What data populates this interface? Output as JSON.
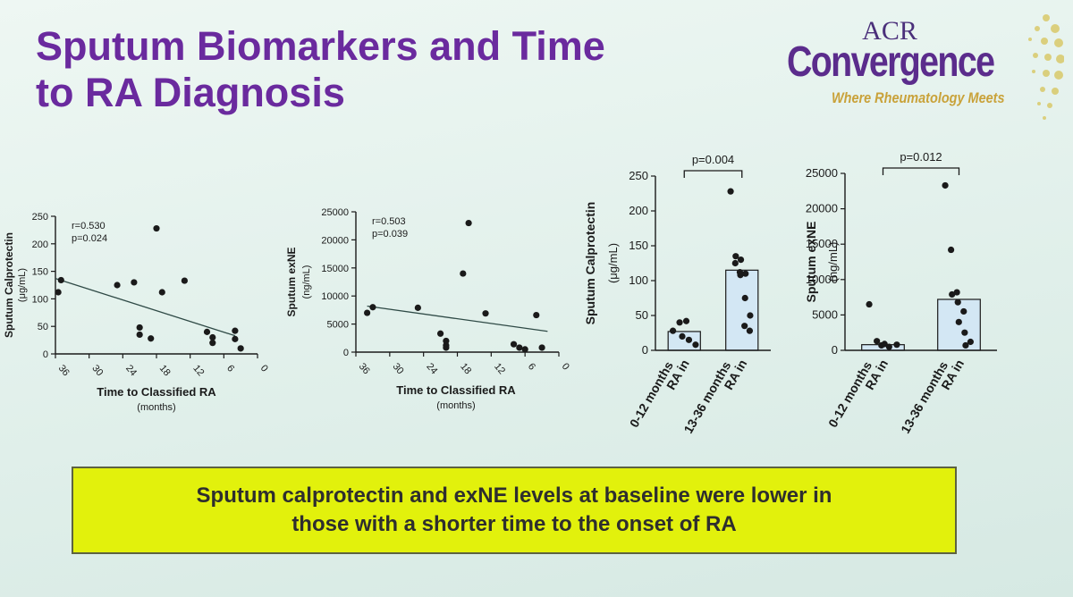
{
  "slide": {
    "title_line1": "Sputum Biomarkers and Time",
    "title_line2": "to RA Diagnosis"
  },
  "logo": {
    "acr": "ACR",
    "convergence": "Convergence",
    "tagline": "Where Rheumatology Meets"
  },
  "callout": {
    "line1": "Sputum calprotectin and exNE levels at baseline were lower in",
    "line2": "those with a shorter time to the onset of RA"
  },
  "colors": {
    "title": "#6a2a9e",
    "callout_bg": "#e2f10c",
    "points": "#1a1a1a",
    "bars": "#d3e7f4"
  },
  "chart_data": [
    {
      "type": "scatter",
      "ylabel": "Sputum Calprotectin",
      "ylabel_unit": "(μg/mL)",
      "xlabel": "Time to Classified RA",
      "xlabel_unit": "(months)",
      "xlim": [
        36,
        0
      ],
      "ylim": [
        0,
        250
      ],
      "x_ticks": [
        36,
        30,
        24,
        18,
        12,
        6,
        0
      ],
      "y_ticks": [
        0,
        50,
        100,
        150,
        200,
        250
      ],
      "annotation": [
        "r=0.530",
        "p=0.024"
      ],
      "x": [
        35.5,
        35,
        25,
        22,
        21,
        21,
        19,
        18,
        17,
        13,
        9,
        8,
        8,
        4,
        4,
        3
      ],
      "y": [
        112,
        134,
        125,
        130,
        48,
        35,
        28,
        228,
        112,
        133,
        40,
        30,
        20,
        42,
        27,
        10
      ],
      "trend": {
        "x": [
          36,
          4
        ],
        "y": [
          137,
          33
        ]
      }
    },
    {
      "type": "scatter",
      "ylabel": "Sputum exNE",
      "ylabel_unit": "(ng/mL)",
      "xlabel": "Time to Classified RA",
      "xlabel_unit": "(months)",
      "xlim": [
        36,
        0
      ],
      "ylim": [
        0,
        25000
      ],
      "x_ticks": [
        36,
        30,
        24,
        18,
        12,
        6,
        0
      ],
      "y_ticks": [
        0,
        5000,
        10000,
        15000,
        20000,
        25000
      ],
      "annotation": [
        "r=0.503",
        "p=0.039"
      ],
      "x": [
        34,
        33,
        25,
        21,
        20,
        20,
        20,
        17,
        16,
        13,
        8,
        7,
        6,
        4,
        3
      ],
      "y": [
        7000,
        8000,
        7900,
        3300,
        2000,
        1200,
        800,
        14000,
        23000,
        6900,
        1400,
        800,
        500,
        6600,
        800
      ],
      "trend": {
        "x": [
          34,
          2
        ],
        "y": [
          8200,
          3700
        ]
      }
    },
    {
      "type": "bar",
      "ylabel": "Sputum Calprotectin",
      "ylabel_unit": "(μg/mL)",
      "categories": [
        "RA in\n0-12 months",
        "RA in\n13-36 months"
      ],
      "values": [
        27,
        115
      ],
      "ylim": [
        0,
        250
      ],
      "y_ticks": [
        0,
        50,
        100,
        150,
        200,
        250
      ],
      "points": [
        [
          28,
          40,
          42,
          20,
          15,
          8
        ],
        [
          228,
          135,
          130,
          125,
          108,
          110,
          112,
          75,
          50,
          35,
          28
        ]
      ],
      "significance": "p=0.004"
    },
    {
      "type": "bar",
      "ylabel": "Sputum exNE",
      "ylabel_unit": "(ng/mL)",
      "categories": [
        "RA in\n0-12 months",
        "RA in\n13-36 months"
      ],
      "values": [
        800,
        7200
      ],
      "ylim": [
        0,
        25000
      ],
      "y_ticks": [
        0,
        5000,
        10000,
        15000,
        20000,
        25000
      ],
      "points": [
        [
          6500,
          1300,
          900,
          700,
          500,
          800
        ],
        [
          23300,
          14200,
          8200,
          7900,
          6800,
          5500,
          4000,
          2500,
          1200,
          700
        ]
      ],
      "significance": "p=0.012"
    }
  ]
}
